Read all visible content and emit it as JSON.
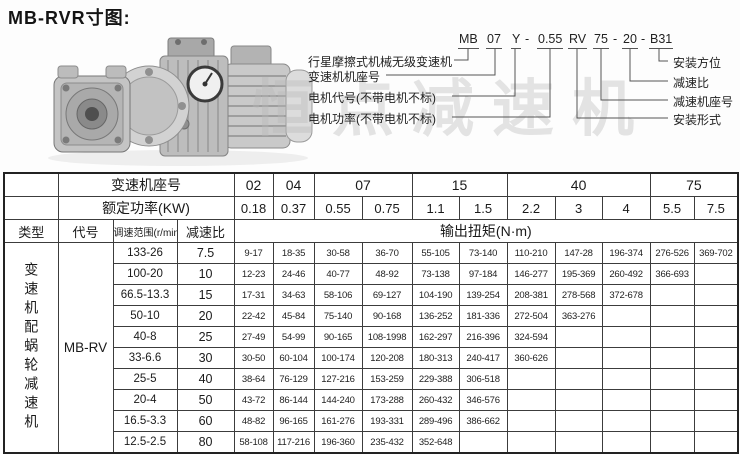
{
  "page": {
    "title": "MB-RVR寸图:"
  },
  "watermark": "恒点减速机",
  "colors": {
    "border": "#3c3c3c",
    "text": "#1a1a1a",
    "watermark": "#bdbdbd"
  },
  "model_code": {
    "segments": [
      "MB",
      "07",
      "Y",
      "-",
      "0.55",
      "RV",
      "75",
      "-",
      "20",
      "-",
      "B31"
    ],
    "left_labels": [
      "行星摩擦式机械无级变速机",
      "变速机机座号",
      "电机代号(不带电机不标)",
      "电机功率(不带电机不标)"
    ],
    "right_labels": [
      "安装方位",
      "减速比",
      "减速机座号",
      "安装形式"
    ]
  },
  "photo": {
    "description": "MB变速机配RV蜗轮减速机产品照片"
  },
  "table": {
    "header": {
      "row1_label": "变速机座号",
      "row1_groups": [
        {
          "label": "02",
          "span": 1
        },
        {
          "label": "04",
          "span": 1
        },
        {
          "label": "07",
          "span": 2
        },
        {
          "label": "15",
          "span": 2
        },
        {
          "label": "40",
          "span": 3
        },
        {
          "label": "75",
          "span": 2
        }
      ],
      "row2_label": "额定功率(KW)",
      "powers": [
        "0.18",
        "0.37",
        "0.55",
        "0.75",
        "1.1",
        "1.5",
        "2.2",
        "3",
        "4",
        "5.5",
        "7.5"
      ],
      "col_type": "类型",
      "col_code": "代号",
      "col_speed": "调速范围(r/min)",
      "col_ratio": "减速比",
      "torque_label": "输出扭矩(N·m)"
    },
    "type_label": "变速机配蜗轮减速机",
    "code_label": "MB-RV",
    "rows": [
      {
        "speed": "133-26",
        "ratio": "7.5",
        "torques": [
          "9-17",
          "18-35",
          "30-58",
          "36-70",
          "55-105",
          "73-140",
          "110-210",
          "147-28",
          "196-374",
          "276-526",
          "369-702"
        ]
      },
      {
        "speed": "100-20",
        "ratio": "10",
        "torques": [
          "12-23",
          "24-46",
          "40-77",
          "48-92",
          "73-138",
          "97-184",
          "146-277",
          "195-369",
          "260-492",
          "366-693",
          ""
        ]
      },
      {
        "speed": "66.5-13.3",
        "ratio": "15",
        "torques": [
          "17-31",
          "34-63",
          "58-106",
          "69-127",
          "104-190",
          "139-254",
          "208-381",
          "278-568",
          "372-678",
          "",
          ""
        ]
      },
      {
        "speed": "50-10",
        "ratio": "20",
        "torques": [
          "22-42",
          "45-84",
          "75-140",
          "90-168",
          "136-252",
          "181-336",
          "272-504",
          "363-276",
          "",
          "",
          ""
        ]
      },
      {
        "speed": "40-8",
        "ratio": "25",
        "torques": [
          "27-49",
          "54-99",
          "90-165",
          "108-1998",
          "162-297",
          "216-396",
          "324-594",
          "",
          "",
          "",
          ""
        ]
      },
      {
        "speed": "33-6.6",
        "ratio": "30",
        "torques": [
          "30-50",
          "60-104",
          "100-174",
          "120-208",
          "180-313",
          "240-417",
          "360-626",
          "",
          "",
          "",
          ""
        ]
      },
      {
        "speed": "25-5",
        "ratio": "40",
        "torques": [
          "38-64",
          "76-129",
          "127-216",
          "153-259",
          "229-388",
          "306-518",
          "",
          "",
          "",
          "",
          ""
        ]
      },
      {
        "speed": "20-4",
        "ratio": "50",
        "torques": [
          "43-72",
          "86-144",
          "144-240",
          "173-288",
          "260-432",
          "346-576",
          "",
          "",
          "",
          "",
          ""
        ]
      },
      {
        "speed": "16.5-3.3",
        "ratio": "60",
        "torques": [
          "48-82",
          "96-165",
          "161-276",
          "193-331",
          "289-496",
          "386-662",
          "",
          "",
          "",
          "",
          ""
        ]
      },
      {
        "speed": "12.5-2.5",
        "ratio": "80",
        "torques": [
          "58-108",
          "117-216",
          "196-360",
          "235-432",
          "352-648",
          "",
          "",
          "",
          "",
          "",
          ""
        ]
      }
    ]
  }
}
